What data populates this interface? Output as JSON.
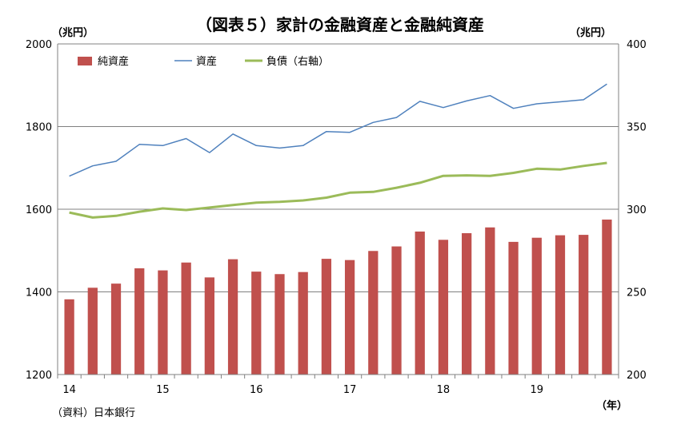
{
  "chart_data": {
    "type": "bar+line",
    "title": "（図表５）家計の金融資産と金融純資産",
    "left_unit": "（兆円）",
    "right_unit": "（兆円）",
    "x_unit": "（年）",
    "source": "（資料）日本銀行",
    "left_axis": {
      "min": 1200,
      "max": 2000,
      "ticks": [
        "1200",
        "1400",
        "1600",
        "1800",
        "2000"
      ]
    },
    "right_axis": {
      "min": 200,
      "max": 400,
      "ticks": [
        "200",
        "250",
        "300",
        "350",
        "400"
      ]
    },
    "x_labels": [
      {
        "label": "14",
        "index": 0
      },
      {
        "label": "15",
        "index": 4
      },
      {
        "label": "16",
        "index": 8
      },
      {
        "label": "17",
        "index": 12
      },
      {
        "label": "18",
        "index": 16
      },
      {
        "label": "19",
        "index": 20
      }
    ],
    "gridlines": [
      1400,
      1600,
      1800
    ],
    "series": [
      {
        "name": "純資産",
        "kind": "bar",
        "axis": "left",
        "color": "#c0504d",
        "values": [
          1382,
          1410,
          1420,
          1457,
          1452,
          1471,
          1435,
          1479,
          1449,
          1443,
          1448,
          1480,
          1477,
          1499,
          1510,
          1546,
          1526,
          1542,
          1556,
          1521,
          1531,
          1537,
          1538,
          1575
        ]
      },
      {
        "name": "資産",
        "kind": "line",
        "axis": "left",
        "color": "#4f81bd",
        "values": [
          1680,
          1705,
          1716,
          1757,
          1754,
          1771,
          1737,
          1782,
          1754,
          1748,
          1754,
          1788,
          1786,
          1810,
          1822,
          1861,
          1846,
          1862,
          1875,
          1844,
          1855,
          1860,
          1865,
          1903
        ]
      },
      {
        "name": "負債（右軸）",
        "kind": "line",
        "axis": "right",
        "color": "#9bbb59",
        "values": [
          298,
          295,
          296,
          298.5,
          300.5,
          299.5,
          301,
          302.5,
          304,
          304.5,
          305.3,
          307,
          310,
          310.5,
          313,
          316,
          320.2,
          320.5,
          320.2,
          322,
          324.5,
          324,
          326.2,
          328
        ]
      }
    ],
    "legend": [
      "純資産",
      "資産",
      "負債（右軸）"
    ],
    "legend_position": "top-left"
  }
}
